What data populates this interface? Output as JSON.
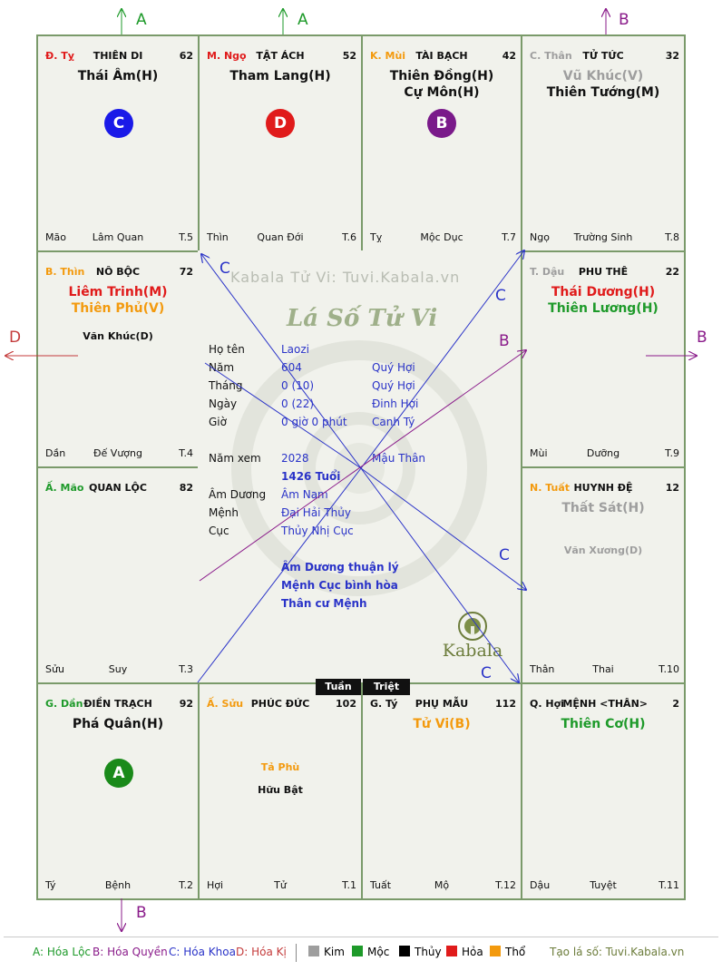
{
  "watermark": "Kabala Tử Vi: Tuvi.Kabala.vn",
  "chart_title": "Lá Số Tử Vi",
  "brand": "Kabala",
  "colors": {
    "kim": "#9e9e9e",
    "moc": "#1e9a2a",
    "thuy": "#000000",
    "hoa": "#e01b1b",
    "tho": "#f39a0e",
    "blue": "#2a33c8",
    "purple": "#8a1b8a"
  },
  "cells": {
    "ty_snake": {
      "can": "Đ. Tỵ",
      "palace": "THIÊN DI",
      "num": "62",
      "main": [
        "Thái Âm(H)"
      ],
      "bl": "Mão",
      "bm": "Lâm Quan",
      "br": "T.5"
    },
    "ngo": {
      "can": "M. Ngọ",
      "palace": "TẬT ÁCH",
      "num": "52",
      "main": [
        "Tham Lang(H)"
      ],
      "bl": "Thìn",
      "bm": "Quan Đới",
      "br": "T.6"
    },
    "mui": {
      "can": "K. Mùi",
      "palace": "TÀI BẠCH",
      "num": "42",
      "main": [
        "Thiên Đồng(H)",
        "Cự Môn(H)"
      ],
      "bl": "Tỵ",
      "bm": "Mộc Dục",
      "br": "T.7"
    },
    "than_monkey": {
      "can": "C. Thân",
      "palace": "TỬ TỨC",
      "num": "32",
      "main": [
        "Vũ Khúc(V)",
        "Thiên Tướng(M)"
      ],
      "bl": "Ngọ",
      "bm": "Trường Sinh",
      "br": "T.8"
    },
    "thin": {
      "can": "B. Thìn",
      "palace": "NÔ BỘC",
      "num": "72",
      "main": [
        "Liêm Trinh(M)",
        "Thiên Phủ(V)"
      ],
      "minor": "Văn Khúc(D)",
      "bl": "Dần",
      "bm": "Đế Vượng",
      "br": "T.4"
    },
    "dau": {
      "can": "T. Dậu",
      "palace": "PHU THÊ",
      "num": "22",
      "main": [
        "Thái Dương(H)",
        "Thiên Lương(H)"
      ],
      "bl": "Mùi",
      "bm": "Dưỡng",
      "br": "T.9"
    },
    "mao": {
      "can": "Ấ. Mão",
      "palace": "QUAN LỘC",
      "num": "82",
      "main": [],
      "bl": "Sửu",
      "bm": "Suy",
      "br": "T.3"
    },
    "tuat": {
      "can": "N. Tuất",
      "palace": "HUYNH ĐỆ",
      "num": "12",
      "main": [
        "Thất Sát(H)"
      ],
      "minor": "Văn Xương(D)",
      "bl": "Thân",
      "bm": "Thai",
      "br": "T.10"
    },
    "dan": {
      "can": "G. Dần",
      "palace": "ĐIỀN TRẠCH",
      "num": "92",
      "main": [
        "Phá Quân(H)"
      ],
      "bl": "Tý",
      "bm": "Bệnh",
      "br": "T.2"
    },
    "suu": {
      "can": "Ấ. Sửu",
      "palace": "PHÚC ĐỨC",
      "num": "102",
      "main": [],
      "minor": "Tả Phù",
      "minor2": "Hữu Bật",
      "bl": "Hợi",
      "bm": "Tử",
      "br": "T.1"
    },
    "ty_rat": {
      "can": "G. Tý",
      "palace": "PHỤ MẪU",
      "num": "112",
      "main": [
        "Tử Vi(B)"
      ],
      "bl": "Tuất",
      "bm": "Mộ",
      "br": "T.12"
    },
    "hoi": {
      "can": "Q. Hợi",
      "palace": "MỆNH <THÂN>",
      "num": "2",
      "main": [
        "Thiên Cơ(H)"
      ],
      "bl": "Dậu",
      "bm": "Tuyệt",
      "br": "T.11"
    }
  },
  "circles": {
    "c": "C",
    "d": "D",
    "b": "B",
    "a": "A"
  },
  "info": {
    "ho_ten_lbl": "Họ tên",
    "ho_ten": "Laozi",
    "nam_lbl": "Năm",
    "nam": "604",
    "nam_cc": "Quý Hợi",
    "thang_lbl": "Tháng",
    "thang": "0  (10)",
    "thang_cc": "Quý Hợi",
    "ngay_lbl": "Ngày",
    "ngay": "0  (22)",
    "ngay_cc": "Đinh Hợi",
    "gio_lbl": "Giờ",
    "gio": "0 giờ 0 phút",
    "gio_cc": "Canh Tý",
    "nam_xem_lbl": "Năm xem",
    "nam_xem": "2028",
    "nam_xem_cc": "Mậu Thân",
    "tuoi": "1426 Tuổi",
    "am_duong_lbl": "Âm Dương",
    "am_duong": "Âm Nam",
    "menh_lbl": "Mệnh",
    "menh": "Đại Hải Thủy",
    "cuc_lbl": "Cục",
    "cuc": "Thủy Nhị Cục",
    "note1": "Âm Dương thuận lý",
    "note2": "Mệnh Cục bình hòa",
    "note3": "Thân cư Mệnh"
  },
  "tags": {
    "tuan": "Tuần",
    "triet": "Triệt"
  },
  "arrows": {
    "top1": "A",
    "top2": "A",
    "top3": "B",
    "left": "D",
    "right": "B",
    "bottom": "B",
    "c_upper": "C",
    "c_right1": "C",
    "b_center": "B",
    "c_right2": "C",
    "c_bottom": "C"
  },
  "legend": {
    "a": "A: Hóa Lộc",
    "b": "B: Hóa Quyền",
    "c": "C: Hóa Khoa",
    "d": "D: Hóa Kị",
    "kim": "Kim",
    "moc": "Mộc",
    "thuy": "Thủy",
    "hoa": "Hỏa",
    "tho": "Thổ",
    "credit": "Tạo lá số: Tuvi.Kabala.vn"
  }
}
